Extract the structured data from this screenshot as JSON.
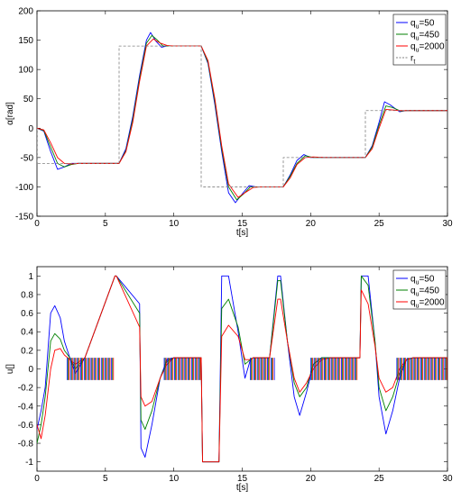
{
  "chart_data": [
    {
      "type": "line",
      "title": "",
      "xlabel": "t[s]",
      "ylabel": "α[rad]",
      "xlim": [
        0,
        30
      ],
      "ylim": [
        -150,
        200
      ],
      "xticks": [
        0,
        5,
        10,
        15,
        20,
        25,
        30
      ],
      "yticks": [
        -150,
        -100,
        -50,
        0,
        50,
        100,
        150,
        200
      ],
      "xtick_labels": [
        "0",
        "5",
        "10",
        "15",
        "20",
        "25",
        "30"
      ],
      "ytick_labels": [
        "-150",
        "-100",
        "-50",
        "0",
        "50",
        "100",
        "150",
        "200"
      ],
      "legend_position": "top-right",
      "legend": [
        {
          "label": "q",
          "sub": "u",
          "suffix": "=50",
          "color": "#0000ff",
          "dash": false
        },
        {
          "label": "q",
          "sub": "u",
          "suffix": "=450",
          "color": "#008000",
          "dash": false
        },
        {
          "label": "q",
          "sub": "u",
          "suffix": "=2000",
          "color": "#ff0000",
          "dash": false
        },
        {
          "label": "r",
          "sub": "t",
          "suffix": "",
          "color": "#808080",
          "dash": true
        }
      ],
      "series": [
        {
          "key": "qu50",
          "color": "#0000ff",
          "x": [
            0,
            0.5,
            1,
            1.5,
            2,
            2.5,
            3,
            4,
            5,
            6,
            6.5,
            7,
            7.5,
            8,
            8.3,
            8.7,
            9.1,
            9.5,
            10,
            11,
            12,
            12.5,
            13,
            13.5,
            14,
            14.5,
            15,
            15.5,
            16,
            17,
            18,
            18.5,
            19,
            19.5,
            20,
            21,
            22,
            23,
            24,
            24.5,
            25,
            25.4,
            25.8,
            26.5,
            27,
            28,
            30
          ],
          "y": [
            0,
            -5,
            -40,
            -70,
            -66,
            -60,
            -60,
            -60,
            -60,
            -60,
            -35,
            20,
            90,
            150,
            163,
            148,
            138,
            140,
            140,
            140,
            140,
            110,
            40,
            -40,
            -110,
            -127,
            -112,
            -98,
            -100,
            -100,
            -100,
            -80,
            -55,
            -45,
            -50,
            -50,
            -50,
            -50,
            -50,
            -30,
            10,
            45,
            40,
            28,
            30,
            30,
            30
          ]
        },
        {
          "key": "qu450",
          "color": "#008000",
          "x": [
            0,
            0.5,
            1,
            1.5,
            2,
            2.5,
            3,
            4,
            5,
            6,
            6.5,
            7,
            7.5,
            8,
            8.4,
            8.8,
            9.2,
            9.6,
            10,
            11,
            12,
            12.5,
            13,
            13.5,
            14,
            14.6,
            15.1,
            15.6,
            16.2,
            17,
            18,
            18.5,
            19,
            19.6,
            20.2,
            21,
            22,
            23,
            24,
            24.5,
            25,
            25.5,
            26,
            26.6,
            27,
            28,
            30
          ],
          "y": [
            0,
            -4,
            -32,
            -60,
            -66,
            -62,
            -60,
            -60,
            -60,
            -60,
            -38,
            15,
            85,
            145,
            158,
            150,
            140,
            140,
            140,
            140,
            140,
            112,
            45,
            -35,
            -100,
            -122,
            -112,
            -100,
            -100,
            -100,
            -100,
            -82,
            -60,
            -47,
            -50,
            -50,
            -50,
            -50,
            -50,
            -32,
            5,
            38,
            35,
            29,
            30,
            30,
            30
          ]
        },
        {
          "key": "qu2000",
          "color": "#ff0000",
          "x": [
            0,
            0.5,
            1,
            1.5,
            2,
            2.5,
            3,
            4,
            5,
            6,
            6.5,
            7,
            7.5,
            8,
            8.5,
            9,
            9.5,
            10,
            11,
            12,
            12.5,
            13,
            13.5,
            14,
            14.7,
            15.2,
            15.8,
            16.4,
            17,
            18,
            18.5,
            19,
            19.6,
            20.2,
            21,
            22,
            23,
            24,
            24.5,
            25,
            25.5,
            26,
            26.5,
            27,
            28,
            30
          ],
          "y": [
            0,
            -3,
            -25,
            -50,
            -60,
            -61,
            -60,
            -60,
            -60,
            -60,
            -40,
            10,
            80,
            140,
            152,
            145,
            141,
            140,
            140,
            140,
            115,
            50,
            -30,
            -95,
            -118,
            -110,
            -101,
            -100,
            -100,
            -100,
            -85,
            -62,
            -50,
            -49,
            -50,
            -50,
            -50,
            -50,
            -35,
            0,
            32,
            31,
            30,
            30,
            30,
            30
          ]
        },
        {
          "key": "rt",
          "color": "#808080",
          "dash": true,
          "x": [
            0,
            0,
            6,
            6,
            12,
            12,
            18,
            18,
            24,
            24,
            30
          ],
          "y": [
            0,
            -60,
            -60,
            140,
            140,
            -100,
            -100,
            -50,
            -50,
            30,
            30
          ]
        }
      ]
    },
    {
      "type": "line",
      "title": "",
      "xlabel": "t[s]",
      "ylabel": "u[]",
      "xlim": [
        0,
        30
      ],
      "ylim": [
        -1.1,
        1.1
      ],
      "xticks": [
        0,
        5,
        10,
        15,
        20,
        25,
        30
      ],
      "yticks": [
        -1,
        -0.8,
        -0.6,
        -0.4,
        -0.2,
        0,
        0.2,
        0.4,
        0.6,
        0.8,
        1
      ],
      "xtick_labels": [
        "0",
        "5",
        "10",
        "15",
        "20",
        "25",
        "30"
      ],
      "ytick_labels": [
        "-1",
        "-0.8",
        "-0.6",
        "-0.4",
        "-0.2",
        "0",
        "0.2",
        "0.4",
        "0.6",
        "0.8",
        "1"
      ],
      "legend_position": "top-right",
      "legend": [
        {
          "label": "q",
          "sub": "u",
          "suffix": "=50",
          "color": "#0000ff",
          "dash": false
        },
        {
          "label": "q",
          "sub": "u",
          "suffix": "=450",
          "color": "#008000",
          "dash": false
        },
        {
          "label": "q",
          "sub": "u",
          "suffix": "=2000",
          "color": "#ff0000",
          "dash": false
        }
      ],
      "series": [
        {
          "key": "qu50",
          "color": "#0000ff",
          "x": [
            0,
            0.3,
            0.6,
            1.0,
            1.3,
            1.7,
            2.0,
            2.4,
            2.8,
            3.5,
            5.7,
            5.8,
            7.5,
            7.6,
            7.9,
            8.4,
            9.0,
            9.5,
            10.0,
            12.0,
            12.1,
            13.3,
            13.5,
            14.0,
            14.7,
            15.2,
            15.6,
            15.8,
            16.2,
            16.5,
            17.0,
            17.6,
            17.8,
            18.3,
            18.8,
            19.2,
            19.7,
            20.2,
            20.8,
            21.5,
            23.6,
            23.7,
            24.2,
            24.7,
            25.0,
            25.5,
            26.0,
            26.5,
            27.0,
            27.5,
            30
          ],
          "y": [
            -0.65,
            -0.45,
            -0.2,
            0.6,
            0.68,
            0.55,
            0.3,
            0.12,
            -0.05,
            0.12,
            1.0,
            1.0,
            0.7,
            -0.85,
            -0.95,
            -0.6,
            -0.1,
            0.1,
            0.12,
            0.12,
            -1.0,
            -1.0,
            1.0,
            1.0,
            0.4,
            -0.1,
            0.1,
            0.12,
            0.12,
            0.12,
            0.12,
            1.0,
            1.0,
            0.3,
            -0.3,
            -0.5,
            -0.25,
            0.05,
            0.12,
            0.12,
            0.12,
            1.0,
            1.0,
            0.3,
            -0.3,
            -0.7,
            -0.45,
            -0.1,
            0.1,
            0.12,
            0.12
          ]
        },
        {
          "key": "qu450",
          "color": "#008000",
          "x": [
            0,
            0.3,
            0.6,
            1.0,
            1.3,
            1.7,
            2.0,
            2.4,
            2.8,
            3.5,
            5.7,
            5.8,
            7.5,
            7.6,
            7.9,
            8.4,
            9.0,
            9.5,
            10.0,
            12.0,
            12.1,
            13.3,
            13.5,
            14.0,
            14.7,
            15.2,
            15.6,
            15.8,
            16.2,
            16.5,
            17.0,
            17.6,
            17.8,
            18.3,
            18.8,
            19.2,
            19.7,
            20.2,
            20.8,
            21.5,
            23.6,
            23.7,
            24.2,
            24.7,
            25.0,
            25.5,
            26.0,
            26.5,
            27.0,
            27.5,
            30
          ],
          "y": [
            -0.8,
            -0.6,
            -0.3,
            0.3,
            0.38,
            0.32,
            0.2,
            0.12,
            0.0,
            0.12,
            1.0,
            1.0,
            0.6,
            -0.55,
            -0.65,
            -0.45,
            -0.1,
            0.08,
            0.12,
            0.12,
            -1.0,
            -1.0,
            0.65,
            0.75,
            0.45,
            0.05,
            0.1,
            0.12,
            0.12,
            0.12,
            0.12,
            0.95,
            0.95,
            0.3,
            -0.15,
            -0.3,
            -0.2,
            0.05,
            0.12,
            0.12,
            0.12,
            1.0,
            0.9,
            0.3,
            -0.2,
            -0.45,
            -0.3,
            -0.05,
            0.1,
            0.12,
            0.12
          ]
        },
        {
          "key": "qu2000",
          "color": "#ff0000",
          "x": [
            0,
            0.3,
            0.6,
            1.0,
            1.3,
            1.7,
            2.0,
            2.4,
            2.8,
            3.5,
            5.7,
            5.8,
            7.5,
            7.6,
            7.9,
            8.4,
            9.0,
            9.5,
            10.0,
            12.0,
            12.1,
            13.3,
            13.5,
            14.0,
            14.7,
            15.2,
            15.6,
            15.8,
            16.2,
            16.5,
            17.0,
            17.6,
            17.8,
            18.3,
            18.8,
            19.2,
            19.7,
            20.2,
            20.8,
            21.5,
            23.6,
            23.7,
            24.2,
            24.7,
            25.0,
            25.5,
            26.0,
            26.5,
            27.0,
            27.5,
            30
          ],
          "y": [
            -0.6,
            -0.75,
            -0.5,
            0.0,
            0.2,
            0.22,
            0.15,
            0.1,
            0.05,
            0.12,
            1.0,
            1.0,
            0.45,
            -0.3,
            -0.4,
            -0.35,
            -0.1,
            0.05,
            0.12,
            0.12,
            -1.0,
            -1.0,
            0.35,
            0.47,
            0.35,
            0.1,
            0.1,
            0.12,
            0.12,
            0.12,
            0.12,
            0.75,
            0.75,
            0.3,
            -0.1,
            -0.25,
            -0.15,
            0.0,
            0.1,
            0.12,
            0.12,
            0.85,
            0.7,
            0.25,
            -0.1,
            -0.25,
            -0.2,
            0.0,
            0.1,
            0.12,
            0.12
          ]
        }
      ],
      "chatter": {
        "amplitude": 0.12,
        "segments": [
          {
            "t0": 2.2,
            "t1": 5.6
          },
          {
            "t0": 9.3,
            "t1": 12.0
          },
          {
            "t0": 15.6,
            "t1": 17.4
          },
          {
            "t0": 20.0,
            "t1": 23.5
          },
          {
            "t0": 26.3,
            "t1": 30.0
          }
        ]
      }
    }
  ]
}
